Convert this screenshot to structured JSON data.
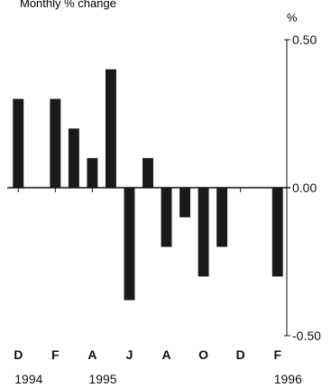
{
  "chart_data": {
    "type": "bar",
    "title": "Monthly % change",
    "unit_label": "%",
    "ylim": [
      -0.5,
      0.5
    ],
    "y_ticks": [
      {
        "value": 0.5,
        "label": "0.50"
      },
      {
        "value": 0.0,
        "label": "0.00"
      },
      {
        "value": -0.5,
        "label": "-0.50"
      }
    ],
    "months": [
      "1994-12",
      "1995-01",
      "1995-02",
      "1995-03",
      "1995-04",
      "1995-05",
      "1995-06",
      "1995-07",
      "1995-08",
      "1995-09",
      "1995-10",
      "1995-11",
      "1995-12",
      "1996-01",
      "1996-02"
    ],
    "values": [
      0.3,
      null,
      0.3,
      0.2,
      0.1,
      0.4,
      -0.38,
      0.1,
      -0.2,
      -0.1,
      -0.3,
      -0.2,
      null,
      null,
      -0.3
    ],
    "x_tick_labels": [
      {
        "month": "1994-12",
        "label": "D"
      },
      {
        "month": "1995-02",
        "label": "F"
      },
      {
        "month": "1995-04",
        "label": "A"
      },
      {
        "month": "1995-06",
        "label": "J"
      },
      {
        "month": "1995-08",
        "label": "A"
      },
      {
        "month": "1995-10",
        "label": "O"
      },
      {
        "month": "1995-12",
        "label": "D"
      },
      {
        "month": "1996-02",
        "label": "F"
      }
    ],
    "year_labels": [
      {
        "month": "1994-12",
        "label": "1994"
      },
      {
        "month": "1995-04",
        "label": "1995"
      },
      {
        "month": "1996-02",
        "label": "1996"
      }
    ],
    "grid": false,
    "colors": {
      "bar": "#1a1a1a",
      "axis": "#111111",
      "text": "#111111"
    }
  }
}
